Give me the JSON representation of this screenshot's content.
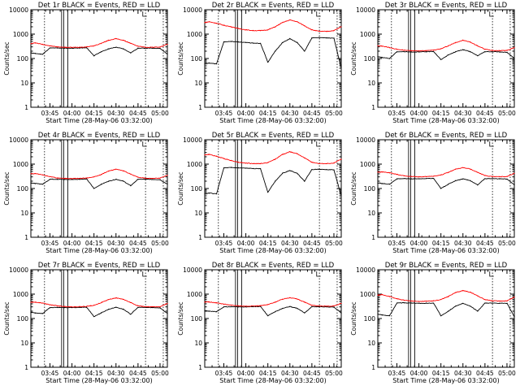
{
  "colors": {
    "events": "#000000",
    "lld": "#ff0000",
    "axes": "#000000",
    "background": "#ffffff"
  },
  "chart_data": [
    {
      "type": "line",
      "title": "Det 1r BLACK = Events, RED = LLD",
      "xlabel": "Start Time (28-May-06 03:32:00)",
      "ylabel": "Counts/sec",
      "y_scale": "log",
      "ylim": [
        1,
        10000
      ],
      "yticks": [
        "1",
        "10",
        "100",
        "1000",
        "10000"
      ],
      "xticks": [
        "03:45",
        "04:00",
        "04:15",
        "04:30",
        "04:45",
        "05:00"
      ],
      "x": [
        "03:32",
        "03:35",
        "03:40",
        "03:45",
        "03:50",
        "03:55",
        "04:00",
        "04:05",
        "04:10",
        "04:15",
        "04:20",
        "04:25",
        "04:30",
        "04:35",
        "04:40",
        "04:45",
        "04:50",
        "04:55",
        "05:00",
        "05:05"
      ],
      "series": [
        {
          "values": [
            400,
            440,
            380,
            330,
            300,
            290,
            285,
            290,
            300,
            330,
            420,
            560,
            650,
            560,
            420,
            320,
            290,
            290,
            295,
            380
          ]
        },
        {
          "values": [
            170,
            160,
            150,
            270,
            270,
            265,
            265,
            270,
            275,
            130,
            190,
            250,
            290,
            250,
            170,
            265,
            265,
            265,
            260,
            150
          ]
        }
      ]
    },
    {
      "type": "line",
      "title": "Det 2r BLACK = Events, RED = LLD",
      "xlabel": "Start Time (28-May-06 03:32:00)",
      "ylabel": "Counts/sec",
      "y_scale": "log",
      "ylim": [
        1,
        10000
      ],
      "yticks": [
        "1",
        "10",
        "100",
        "1000",
        "10000"
      ],
      "xticks": [
        "03:45",
        "04:00",
        "04:15",
        "04:30",
        "04:45",
        "05:00"
      ],
      "x": [
        "03:32",
        "03:35",
        "03:40",
        "03:45",
        "03:50",
        "03:55",
        "04:00",
        "04:05",
        "04:10",
        "04:15",
        "04:20",
        "04:25",
        "04:30",
        "04:35",
        "04:40",
        "04:45",
        "04:50",
        "04:55",
        "05:00",
        "05:05"
      ],
      "series": [
        {
          "values": [
            3000,
            3200,
            2800,
            2300,
            2000,
            1700,
            1500,
            1400,
            1400,
            1500,
            2000,
            3000,
            3800,
            3200,
            2200,
            1500,
            1300,
            1300,
            1400,
            2000
          ]
        },
        {
          "values": [
            60,
            65,
            60,
            480,
            500,
            480,
            450,
            430,
            420,
            70,
            200,
            450,
            650,
            450,
            200,
            700,
            720,
            700,
            680,
            40
          ]
        }
      ]
    },
    {
      "type": "line",
      "title": "Det 3r BLACK = Events, RED = LLD",
      "xlabel": "Start Time (28-May-06 03:32:00)",
      "ylabel": "Counts/sec",
      "y_scale": "log",
      "ylim": [
        1,
        10000
      ],
      "yticks": [
        "1",
        "10",
        "100",
        "1000",
        "10000"
      ],
      "xticks": [
        "03:45",
        "04:00",
        "04:15",
        "04:30",
        "04:45",
        "05:00"
      ],
      "x": [
        "03:32",
        "03:35",
        "03:40",
        "03:45",
        "03:50",
        "03:55",
        "04:00",
        "04:05",
        "04:10",
        "04:15",
        "04:20",
        "04:25",
        "04:30",
        "04:35",
        "04:40",
        "04:45",
        "04:50",
        "04:55",
        "05:00",
        "05:05"
      ],
      "series": [
        {
          "values": [
            330,
            320,
            280,
            240,
            220,
            210,
            205,
            210,
            220,
            250,
            330,
            450,
            560,
            470,
            330,
            240,
            215,
            210,
            215,
            280
          ]
        },
        {
          "values": [
            120,
            110,
            100,
            190,
            190,
            185,
            185,
            190,
            195,
            90,
            140,
            190,
            230,
            190,
            130,
            190,
            190,
            185,
            180,
            100
          ]
        }
      ]
    },
    {
      "type": "line",
      "title": "Det 4r BLACK = Events, RED = LLD",
      "xlabel": "Start Time (28-May-06 03:32:00)",
      "ylabel": "Counts/sec",
      "y_scale": "log",
      "ylim": [
        1,
        10000
      ],
      "yticks": [
        "1",
        "10",
        "100",
        "1000",
        "10000"
      ],
      "xticks": [
        "03:45",
        "04:00",
        "04:15",
        "04:30",
        "04:45",
        "05:00"
      ],
      "x": [
        "03:32",
        "03:35",
        "03:40",
        "03:45",
        "03:50",
        "03:55",
        "04:00",
        "04:05",
        "04:10",
        "04:15",
        "04:20",
        "04:25",
        "04:30",
        "04:35",
        "04:40",
        "04:45",
        "04:50",
        "04:55",
        "05:00",
        "05:05"
      ],
      "series": [
        {
          "values": [
            400,
            410,
            360,
            310,
            270,
            260,
            255,
            260,
            270,
            300,
            380,
            520,
            620,
            530,
            390,
            290,
            265,
            260,
            265,
            350
          ]
        },
        {
          "values": [
            170,
            160,
            150,
            240,
            240,
            235,
            235,
            240,
            245,
            100,
            150,
            200,
            240,
            200,
            130,
            240,
            240,
            235,
            230,
            150
          ]
        }
      ]
    },
    {
      "type": "line",
      "title": "Det 5r BLACK = Events, RED = LLD",
      "xlabel": "Start Time (28-May-06 03:32:00)",
      "ylabel": "Counts/sec",
      "y_scale": "log",
      "ylim": [
        1,
        10000
      ],
      "yticks": [
        "1",
        "10",
        "100",
        "1000",
        "10000"
      ],
      "xticks": [
        "03:45",
        "04:00",
        "04:15",
        "04:30",
        "04:45",
        "05:00"
      ],
      "x": [
        "03:32",
        "03:35",
        "03:40",
        "03:45",
        "03:50",
        "03:55",
        "04:00",
        "04:05",
        "04:10",
        "04:15",
        "04:20",
        "04:25",
        "04:30",
        "04:35",
        "04:40",
        "04:45",
        "04:50",
        "04:55",
        "05:00",
        "05:05"
      ],
      "series": [
        {
          "values": [
            2400,
            2500,
            2100,
            1700,
            1400,
            1200,
            1100,
            1050,
            1050,
            1150,
            1600,
            2500,
            3200,
            2700,
            1800,
            1200,
            1050,
            1050,
            1100,
            1600
          ]
        },
        {
          "values": [
            60,
            65,
            60,
            700,
            720,
            700,
            680,
            660,
            650,
            70,
            200,
            420,
            550,
            420,
            200,
            600,
            620,
            600,
            580,
            50
          ]
        }
      ]
    },
    {
      "type": "line",
      "title": "Det 6r BLACK = Events, RED = LLD",
      "xlabel": "Start Time (28-May-06 03:32:00)",
      "ylabel": "Counts/sec",
      "y_scale": "log",
      "ylim": [
        1,
        10000
      ],
      "yticks": [
        "1",
        "10",
        "100",
        "1000",
        "10000"
      ],
      "xticks": [
        "03:45",
        "04:00",
        "04:15",
        "04:30",
        "04:45",
        "05:00"
      ],
      "x": [
        "03:32",
        "03:35",
        "03:40",
        "03:45",
        "03:50",
        "03:55",
        "04:00",
        "04:05",
        "04:10",
        "04:15",
        "04:20",
        "04:25",
        "04:30",
        "04:35",
        "04:40",
        "04:45",
        "04:50",
        "04:55",
        "05:00",
        "05:05"
      ],
      "series": [
        {
          "values": [
            470,
            480,
            440,
            380,
            330,
            310,
            300,
            310,
            320,
            360,
            460,
            620,
            720,
            630,
            460,
            340,
            310,
            305,
            310,
            420
          ]
        },
        {
          "values": [
            170,
            160,
            150,
            250,
            255,
            250,
            250,
            255,
            260,
            100,
            150,
            210,
            250,
            210,
            140,
            255,
            255,
            250,
            245,
            140
          ]
        }
      ]
    },
    {
      "type": "line",
      "title": "Det 7r BLACK = Events, RED = LLD",
      "xlabel": "Start Time (28-May-06 03:32:00)",
      "ylabel": "Counts/sec",
      "y_scale": "log",
      "ylim": [
        1,
        10000
      ],
      "yticks": [
        "1",
        "10",
        "100",
        "1000",
        "10000"
      ],
      "xticks": [
        "03:45",
        "04:00",
        "04:15",
        "04:30",
        "04:45",
        "05:00"
      ],
      "x": [
        "03:32",
        "03:35",
        "03:40",
        "03:45",
        "03:50",
        "03:55",
        "04:00",
        "04:05",
        "04:10",
        "04:15",
        "04:20",
        "04:25",
        "04:30",
        "04:35",
        "04:40",
        "04:45",
        "04:50",
        "04:55",
        "05:00",
        "05:05"
      ],
      "series": [
        {
          "values": [
            460,
            470,
            430,
            370,
            330,
            310,
            300,
            305,
            315,
            350,
            450,
            600,
            700,
            610,
            450,
            330,
            305,
            300,
            305,
            410
          ]
        },
        {
          "values": [
            180,
            170,
            160,
            280,
            285,
            280,
            280,
            285,
            290,
            120,
            170,
            240,
            290,
            240,
            150,
            285,
            285,
            280,
            275,
            160
          ]
        }
      ]
    },
    {
      "type": "line",
      "title": "Det 8r BLACK = Events, RED = LLD",
      "xlabel": "Start Time (28-May-06 03:32:00)",
      "ylabel": "Counts/sec",
      "y_scale": "log",
      "ylim": [
        1,
        10000
      ],
      "yticks": [
        "1",
        "10",
        "100",
        "1000",
        "10000"
      ],
      "xticks": [
        "03:45",
        "04:00",
        "04:15",
        "04:30",
        "04:45",
        "05:00"
      ],
      "x": [
        "03:32",
        "03:35",
        "03:40",
        "03:45",
        "03:50",
        "03:55",
        "04:00",
        "04:05",
        "04:10",
        "04:15",
        "04:20",
        "04:25",
        "04:30",
        "04:35",
        "04:40",
        "04:45",
        "04:50",
        "04:55",
        "05:00",
        "05:05"
      ],
      "series": [
        {
          "values": [
            470,
            480,
            440,
            390,
            350,
            330,
            320,
            325,
            335,
            370,
            470,
            620,
            720,
            630,
            470,
            350,
            325,
            320,
            325,
            420
          ]
        },
        {
          "values": [
            210,
            200,
            190,
            300,
            305,
            300,
            300,
            305,
            310,
            130,
            190,
            260,
            310,
            260,
            170,
            305,
            305,
            300,
            295,
            170
          ]
        }
      ]
    },
    {
      "type": "line",
      "title": "Det 9r BLACK = Events, RED = LLD",
      "xlabel": "Start Time (28-May-06 03:32:00)",
      "ylabel": "Counts/sec",
      "y_scale": "log",
      "ylim": [
        1,
        10000
      ],
      "yticks": [
        "1",
        "10",
        "100",
        "1000",
        "10000"
      ],
      "xticks": [
        "03:45",
        "04:00",
        "04:15",
        "04:30",
        "04:45",
        "05:00"
      ],
      "x": [
        "03:32",
        "03:35",
        "03:40",
        "03:45",
        "03:50",
        "03:55",
        "04:00",
        "04:05",
        "04:10",
        "04:15",
        "04:20",
        "04:25",
        "04:30",
        "04:35",
        "04:40",
        "04:45",
        "04:50",
        "04:55",
        "05:00",
        "05:05"
      ],
      "series": [
        {
          "values": [
            900,
            950,
            800,
            650,
            560,
            520,
            500,
            510,
            530,
            600,
            800,
            1150,
            1400,
            1200,
            850,
            600,
            530,
            520,
            530,
            750
          ]
        },
        {
          "values": [
            150,
            140,
            130,
            430,
            440,
            430,
            420,
            420,
            425,
            130,
            200,
            320,
            420,
            320,
            200,
            430,
            430,
            425,
            420,
            120
          ]
        }
      ]
    }
  ]
}
